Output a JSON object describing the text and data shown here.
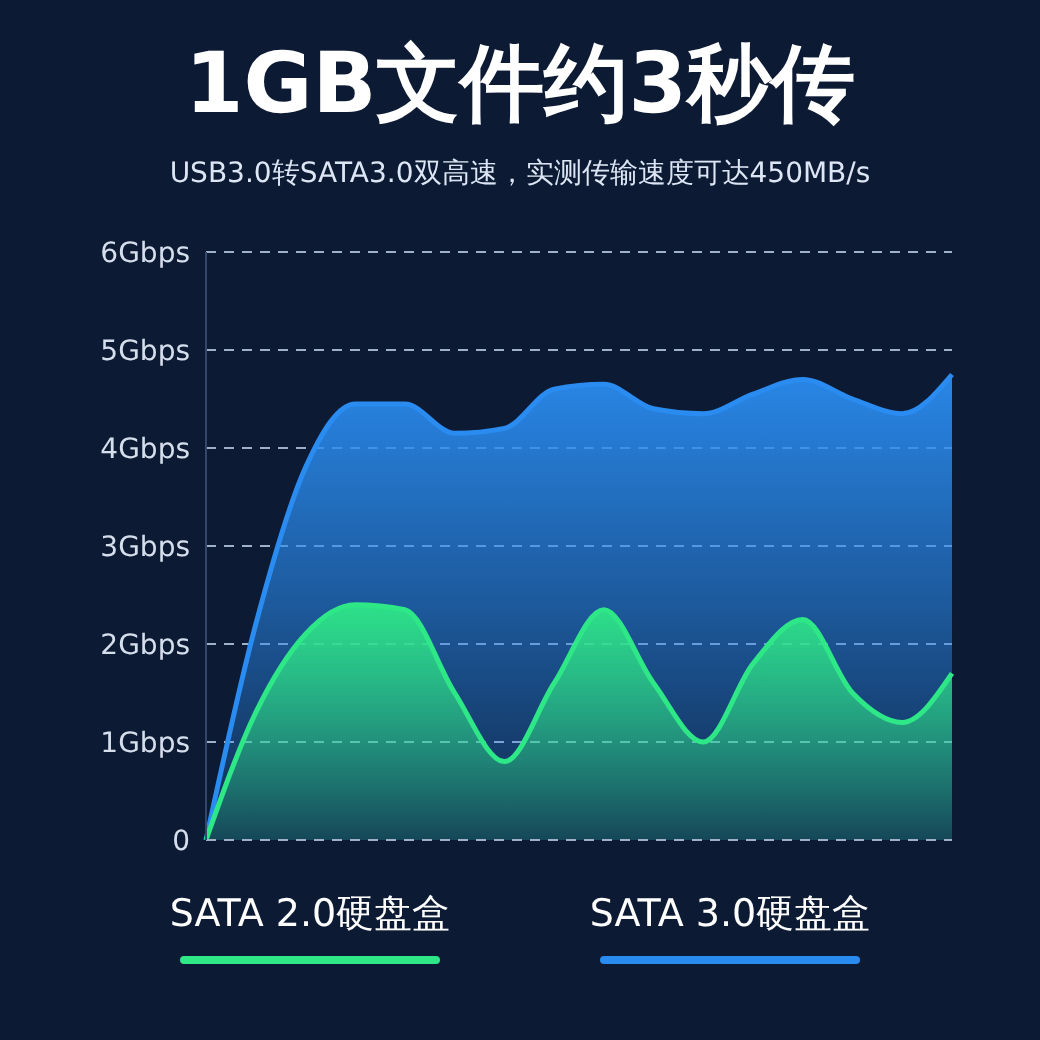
{
  "chart_data": {
    "type": "area",
    "title": "1GB文件约3秒传",
    "subtitle": "USB3.0转SATA3.0双高速，实测传输速度可达450MB/s",
    "categories": [
      null,
      null,
      null,
      null,
      null,
      null,
      null,
      null,
      null,
      null,
      null,
      null,
      null,
      null,
      null,
      null
    ],
    "series": [
      {
        "name": "SATA 2.0硬盘盒",
        "color": "#2ee887",
        "values": [
          0,
          1.3,
          2.1,
          2.4,
          2.35,
          1.5,
          0.8,
          1.6,
          2.35,
          1.6,
          1.0,
          1.8,
          2.25,
          1.5,
          1.2,
          1.7
        ]
      },
      {
        "name": "SATA 3.0硬盘盒",
        "color": "#2a8cf0",
        "values": [
          0,
          2.2,
          3.8,
          4.45,
          4.45,
          4.15,
          4.2,
          4.6,
          4.65,
          4.4,
          4.35,
          4.55,
          4.7,
          4.5,
          4.35,
          4.75
        ]
      }
    ],
    "ylim": [
      0,
      6
    ],
    "yticks": [
      0,
      {
        "value": 1,
        "label": "1Gbps"
      },
      {
        "value": 2,
        "label": "2Gbps"
      },
      {
        "value": 3,
        "label": "3Gbps"
      },
      {
        "value": 4,
        "label": "4Gbps"
      },
      {
        "value": 5,
        "label": "5Gbps"
      },
      {
        "value": 6,
        "label": "6Gbps"
      }
    ],
    "grid": "y",
    "legend": "bottom",
    "tick_labels": "y"
  }
}
